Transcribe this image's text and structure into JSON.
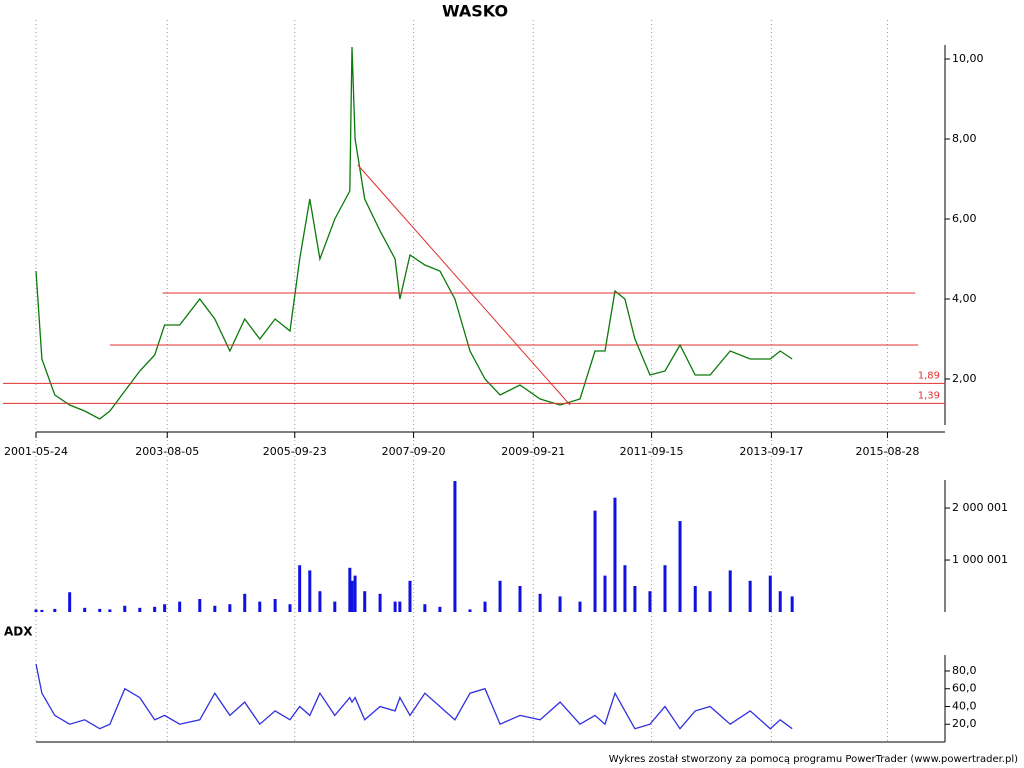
{
  "chart_data": [
    {
      "type": "line",
      "title": "WASKO",
      "color": "#0a7a0a",
      "x": [
        "2001-05-24",
        "2001-06-29",
        "2001-09-16",
        "2001-12-16",
        "2002-03-18",
        "2002-06-18",
        "2002-08-19",
        "2002-11-18",
        "2003-02-18",
        "2003-05-20",
        "2003-07-20",
        "2003-10-20",
        "2004-02-20",
        "2004-05-22",
        "2004-08-22",
        "2004-11-21",
        "2005-02-21",
        "2005-05-26",
        "2005-08-25",
        "2005-10-23",
        "2005-12-24",
        "2006-02-24",
        "2006-05-26",
        "2006-08-26",
        "2006-09-08",
        "2006-09-27",
        "2006-11-25",
        "2007-02-27",
        "2007-05-30",
        "2007-06-28",
        "2007-08-29",
        "2007-11-28",
        "2008-02-28",
        "2008-05-30",
        "2008-08-30",
        "2008-11-30",
        "2009-03-02",
        "2009-07-02",
        "2009-11-02",
        "2010-03-04",
        "2010-07-04",
        "2010-10-04",
        "2010-12-04",
        "2011-02-03",
        "2011-04-05",
        "2011-06-05",
        "2011-09-05",
        "2011-12-06",
        "2012-03-07",
        "2012-06-08",
        "2012-09-07",
        "2013-01-08",
        "2013-05-10",
        "2013-09-10",
        "2013-11-10",
        "2014-01-22"
      ],
      "values": [
        4.7,
        2.5,
        1.6,
        1.35,
        1.2,
        1.0,
        1.2,
        1.7,
        2.2,
        2.6,
        3.35,
        3.35,
        4.0,
        3.5,
        2.7,
        3.5,
        3.0,
        3.5,
        3.2,
        5.0,
        6.5,
        5.0,
        6.0,
        6.7,
        10.3,
        8.0,
        6.5,
        5.7,
        5.0,
        4.0,
        5.1,
        4.85,
        4.7,
        4.0,
        2.7,
        2.0,
        1.6,
        1.85,
        1.5,
        1.35,
        1.5,
        2.7,
        2.7,
        4.2,
        4.0,
        3.0,
        2.1,
        2.2,
        2.85,
        2.1,
        2.1,
        2.7,
        2.5,
        2.5,
        2.7,
        2.5
      ],
      "xlim": [
        "2001-05-24",
        "2016-08-14"
      ],
      "xticks": [
        "2001-05-24",
        "2003-08-05",
        "2005-09-23",
        "2007-09-20",
        "2009-09-21",
        "2011-09-15",
        "2013-09-17",
        "2015-08-28"
      ],
      "ylim": [
        0.85,
        10.35
      ],
      "yticks": [
        {
          "value": 2,
          "label": "2,00"
        },
        {
          "value": 4,
          "label": "4,00"
        },
        {
          "value": 6,
          "label": "6,00"
        },
        {
          "value": 8,
          "label": "8,00"
        },
        {
          "value": 10,
          "label": "10,00"
        }
      ],
      "grid": true,
      "annotation_color": "#e03030",
      "hlines": [
        {
          "value": 1.89,
          "label": "1,89"
        },
        {
          "value": 1.39,
          "label": "1,39"
        }
      ],
      "segments": [
        {
          "x": [
            "2003-07-08",
            "2016-02-13"
          ],
          "y": [
            4.15,
            4.15
          ]
        },
        {
          "x": [
            "2002-08-19",
            "2016-03-03"
          ],
          "y": [
            2.85,
            2.85
          ]
        },
        {
          "x": [
            "2006-10-14",
            "2010-05-04"
          ],
          "y": [
            7.35,
            1.35
          ]
        }
      ]
    },
    {
      "type": "bar",
      "color": "#1010e0",
      "x": [
        "2001-05-24",
        "2001-06-29",
        "2001-09-16",
        "2001-12-16",
        "2002-03-18",
        "2002-06-18",
        "2002-08-19",
        "2002-11-18",
        "2003-02-18",
        "2003-05-20",
        "2003-07-20",
        "2003-10-20",
        "2004-02-20",
        "2004-05-22",
        "2004-08-22",
        "2004-11-21",
        "2005-02-21",
        "2005-05-26",
        "2005-08-25",
        "2005-10-23",
        "2005-12-24",
        "2006-02-24",
        "2006-05-26",
        "2006-08-26",
        "2006-09-08",
        "2006-09-27",
        "2006-11-25",
        "2007-02-27",
        "2007-05-30",
        "2007-06-28",
        "2007-08-29",
        "2007-11-28",
        "2008-02-28",
        "2008-05-30",
        "2008-08-30",
        "2008-11-30",
        "2009-03-02",
        "2009-07-02",
        "2009-11-02",
        "2010-03-04",
        "2010-07-04",
        "2010-10-04",
        "2010-12-04",
        "2011-02-03",
        "2011-04-05",
        "2011-06-05",
        "2011-09-05",
        "2011-12-06",
        "2012-03-07",
        "2012-06-08",
        "2012-09-07",
        "2013-01-08",
        "2013-05-10",
        "2013-09-10",
        "2013-11-10",
        "2014-01-22"
      ],
      "values": [
        50000,
        40000,
        60000,
        380000,
        80000,
        60000,
        50000,
        120000,
        80000,
        100000,
        150000,
        200000,
        250000,
        120000,
        150000,
        350000,
        200000,
        250000,
        150000,
        900000,
        800000,
        400000,
        200000,
        850000,
        600000,
        700000,
        400000,
        350000,
        200000,
        200000,
        600000,
        150000,
        100000,
        2520000,
        50000,
        200000,
        600000,
        500000,
        350000,
        300000,
        200000,
        1950000,
        700000,
        2200000,
        900000,
        500000,
        400000,
        900000,
        1750000,
        500000,
        400000,
        800000,
        600000,
        700000,
        400000,
        300000
      ],
      "xlim": [
        "2001-05-24",
        "2016-08-14"
      ],
      "ylim": [
        0,
        2540000
      ],
      "yticks": [
        {
          "value": 1000001,
          "label": "1 000 001"
        },
        {
          "value": 2000001,
          "label": "2 000 001"
        }
      ]
    },
    {
      "type": "line",
      "title": "ADX",
      "color": "#3030e0",
      "x": [
        "2001-05-24",
        "2001-06-29",
        "2001-09-16",
        "2001-12-16",
        "2002-03-18",
        "2002-06-18",
        "2002-08-19",
        "2002-11-18",
        "2003-02-18",
        "2003-05-20",
        "2003-07-20",
        "2003-10-20",
        "2004-02-20",
        "2004-05-22",
        "2004-08-22",
        "2004-11-21",
        "2005-02-21",
        "2005-05-26",
        "2005-08-25",
        "2005-10-23",
        "2005-12-24",
        "2006-02-24",
        "2006-05-26",
        "2006-08-26",
        "2006-09-08",
        "2006-09-27",
        "2006-11-25",
        "2007-02-27",
        "2007-05-30",
        "2007-06-28",
        "2007-08-29",
        "2007-11-28",
        "2008-02-28",
        "2008-05-30",
        "2008-08-30",
        "2008-11-30",
        "2009-03-02",
        "2009-07-02",
        "2009-11-02",
        "2010-03-04",
        "2010-07-04",
        "2010-10-04",
        "2010-12-04",
        "2011-02-03",
        "2011-04-05",
        "2011-06-05",
        "2011-09-05",
        "2011-12-06",
        "2012-03-07",
        "2012-06-08",
        "2012-09-07",
        "2013-01-08",
        "2013-05-10",
        "2013-09-10",
        "2013-11-10",
        "2014-01-22"
      ],
      "values": [
        88,
        55,
        30,
        20,
        25,
        15,
        20,
        60,
        50,
        25,
        30,
        20,
        25,
        55,
        30,
        45,
        20,
        35,
        25,
        40,
        30,
        55,
        30,
        50,
        45,
        50,
        25,
        40,
        35,
        50,
        30,
        55,
        40,
        25,
        55,
        60,
        20,
        30,
        25,
        45,
        20,
        30,
        20,
        55,
        35,
        15,
        20,
        40,
        15,
        35,
        40,
        20,
        35,
        15,
        25,
        15
      ],
      "xlim": [
        "2001-05-24",
        "2016-08-14"
      ],
      "ylim": [
        0,
        98
      ],
      "yticks": [
        {
          "value": 20,
          "label": "20,0"
        },
        {
          "value": 40,
          "label": "40,0"
        },
        {
          "value": 60,
          "label": "60,0"
        },
        {
          "value": 80,
          "label": "80,0"
        }
      ]
    }
  ],
  "footer": "Wykres został stworzony za pomocą programu PowerTrader (www.powertrader.pl)"
}
